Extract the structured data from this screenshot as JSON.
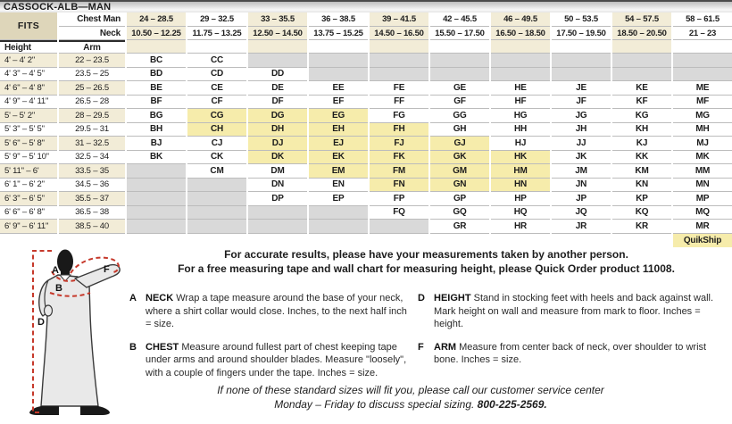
{
  "title": "CASSOCK-ALB—MAN",
  "table": {
    "fits_label": "FITS",
    "chest_label": "Chest Man",
    "neck_label": "Neck",
    "height_label": "Height",
    "arm_label": "Arm",
    "chest_ranges": [
      "24 – 28.5",
      "29 – 32.5",
      "33 – 35.5",
      "36 – 38.5",
      "39 – 41.5",
      "42 – 45.5",
      "46 – 49.5",
      "50 – 53.5",
      "54 – 57.5",
      "58 – 61.5"
    ],
    "neck_ranges": [
      "10.50 – 12.25",
      "11.75 – 13.25",
      "12.50 – 14.50",
      "13.75 – 15.25",
      "14.50 – 16.50",
      "15.50 – 17.50",
      "16.50 – 18.50",
      "17.50 – 19.50",
      "18.50 – 20.50",
      "21 – 23"
    ],
    "rows": [
      {
        "height": "4' – 4' 2\"",
        "arm": "22 – 23.5",
        "cells": [
          "BC",
          "CC",
          null,
          null,
          null,
          null,
          null,
          null,
          null,
          null
        ]
      },
      {
        "height": "4' 3\" – 4' 5\"",
        "arm": "23.5 – 25",
        "cells": [
          "BD",
          "CD",
          "DD",
          null,
          null,
          null,
          null,
          null,
          null,
          null
        ]
      },
      {
        "height": "4' 6\" – 4' 8\"",
        "arm": "25 – 26.5",
        "cells": [
          "BE",
          "CE",
          "DE",
          "EE",
          "FE",
          "GE",
          "HE",
          "JE",
          "KE",
          "ME"
        ]
      },
      {
        "height": "4' 9\" – 4' 11\"",
        "arm": "26.5 – 28",
        "cells": [
          "BF",
          "CF",
          "DF",
          "EF",
          "FF",
          "GF",
          "HF",
          "JF",
          "KF",
          "MF"
        ]
      },
      {
        "height": "5' – 5' 2\"",
        "arm": "28 – 29.5",
        "cells": [
          "BG",
          "CG",
          "DG",
          "EG",
          "FG",
          "GG",
          "HG",
          "JG",
          "KG",
          "MG"
        ]
      },
      {
        "height": "5' 3\" – 5' 5\"",
        "arm": "29.5 – 31",
        "cells": [
          "BH",
          "CH",
          "DH",
          "EH",
          "FH",
          "GH",
          "HH",
          "JH",
          "KH",
          "MH"
        ]
      },
      {
        "height": "5' 6\" – 5' 8\"",
        "arm": "31 – 32.5",
        "cells": [
          "BJ",
          "CJ",
          "DJ",
          "EJ",
          "FJ",
          "GJ",
          "HJ",
          "JJ",
          "KJ",
          "MJ"
        ]
      },
      {
        "height": "5' 9\" – 5' 10\"",
        "arm": "32.5 – 34",
        "cells": [
          "BK",
          "CK",
          "DK",
          "EK",
          "FK",
          "GK",
          "HK",
          "JK",
          "KK",
          "MK"
        ]
      },
      {
        "height": "5' 11\" – 6'",
        "arm": "33.5 – 35",
        "cells": [
          null,
          "CM",
          "DM",
          "EM",
          "FM",
          "GM",
          "HM",
          "JM",
          "KM",
          "MM"
        ]
      },
      {
        "height": "6' 1\" – 6' 2\"",
        "arm": "34.5 – 36",
        "cells": [
          null,
          null,
          "DN",
          "EN",
          "FN",
          "GN",
          "HN",
          "JN",
          "KN",
          "MN"
        ]
      },
      {
        "height": "6' 3\" – 6' 5\"",
        "arm": "35.5 – 37",
        "cells": [
          null,
          null,
          "DP",
          "EP",
          "FP",
          "GP",
          "HP",
          "JP",
          "KP",
          "MP"
        ]
      },
      {
        "height": "6' 6\" – 6' 8\"",
        "arm": "36.5 – 38",
        "cells": [
          null,
          null,
          null,
          null,
          "FQ",
          "GQ",
          "HQ",
          "JQ",
          "KQ",
          "MQ"
        ]
      },
      {
        "height": "6' 9\" – 6' 11\"",
        "arm": "38.5 – 40",
        "cells": [
          null,
          null,
          null,
          null,
          null,
          "GR",
          "HR",
          "JR",
          "KR",
          "MR"
        ]
      }
    ],
    "quikship_codes": [
      "CG",
      "DG",
      "EG",
      "CH",
      "DH",
      "EH",
      "FH",
      "DJ",
      "EJ",
      "FJ",
      "GJ",
      "DK",
      "EK",
      "FK",
      "GK",
      "HK",
      "EM",
      "FM",
      "GM",
      "HM",
      "FN",
      "GN",
      "HN"
    ],
    "quikship_label": "QuikShip"
  },
  "notes": {
    "line1": "For accurate results, please have your measurements taken by another person.",
    "line2": "For a free measuring tape and wall chart for measuring height, please Quick Order product 11008."
  },
  "instructions": [
    {
      "letter": "A",
      "term": "NECK",
      "text": "Wrap a tape measure around the base of your neck, where a shirt collar would close. Inches, to the next half inch = size."
    },
    {
      "letter": "B",
      "term": "CHEST",
      "text": "Measure around fullest part of chest keeping tape under arms and around shoulder blades. Measure \"loosely\", with a couple of fingers under the tape. Inches = size."
    },
    {
      "letter": "D",
      "term": "HEIGHT",
      "text": "Stand in stocking feet with heels and back against wall. Mark height on wall and measure from mark to floor. Inches = height."
    },
    {
      "letter": "F",
      "term": "ARM",
      "text": "Measure from center back of neck, over shoulder to wrist bone. Inches = size."
    }
  ],
  "footer": {
    "line1": "If none of these standard sizes will fit you, please call our customer service center",
    "line2_prefix": "Monday – Friday to discuss special sizing. ",
    "phone": "800-225-2569."
  },
  "figure": {
    "labels": {
      "neck": "A",
      "chest": "B",
      "height": "D",
      "arm": "F"
    }
  },
  "colors": {
    "fits_tan": "#ded6ba",
    "band_cream": "#f2ecd7",
    "quikship_yellow": "#f6ecab",
    "unavailable_grey": "#d9d9d9",
    "measure_red": "#c6392b"
  }
}
